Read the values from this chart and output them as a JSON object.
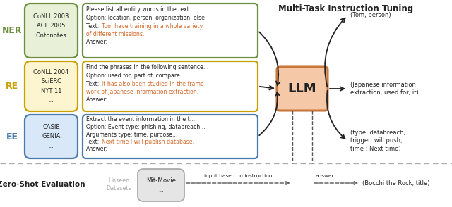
{
  "title": "Multi-Task Instruction Tuning",
  "ner_color": "#6b8f3e",
  "re_color": "#c8a000",
  "ee_color": "#4a7aad",
  "ner_bg": "#e8f0d8",
  "re_bg": "#fdf5d0",
  "ee_bg": "#d8e8f8",
  "llm_fill": "#f5c9a8",
  "llm_edge": "#c8763a",
  "orange_text": "#d4692a",
  "gray_text": "#aaaaaa",
  "dark_text": "#222222",
  "ner_datasets": "CoNLL 2003\nACE 2005\nOntonotes\n...",
  "re_datasets": "CoNLL 2004\nSciERC\nNYT 11\n...",
  "ee_datasets": "CASIE\nGENIA\n...",
  "output_ner": "(Tom, person)",
  "output_re": "(Japanese information\nextraction, used for, it)",
  "output_ee": "(type: databreach,\ntrigger: will push,\ntime : Next time)",
  "zero_shot_output": "(Bocchi the Rock, title)"
}
